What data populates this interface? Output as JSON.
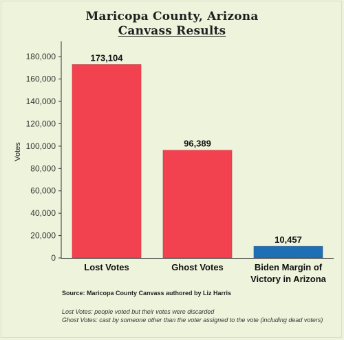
{
  "header": {
    "title_line1": "Maricopa County, Arizona",
    "title_line2": "Canvass Results"
  },
  "chart_data": {
    "type": "bar",
    "categories": [
      "Lost Votes",
      "Ghost Votes",
      "Biden Margin of Victory in Arizona"
    ],
    "category_lines": [
      [
        "Lost Votes"
      ],
      [
        "Ghost Votes"
      ],
      [
        "Biden Margin of",
        "Victory in Arizona"
      ]
    ],
    "values": [
      173104,
      96389,
      10457
    ],
    "value_labels": [
      "173,104",
      "96,389",
      "10,457"
    ],
    "bar_colors": [
      "#f2414f",
      "#f2414f",
      "#1f6fb4"
    ],
    "ylabel": "Votes",
    "xlabel": "",
    "ylim": [
      0,
      190000
    ],
    "yticks": [
      0,
      20000,
      40000,
      60000,
      80000,
      100000,
      120000,
      140000,
      160000,
      180000
    ],
    "ytick_labels": [
      "0",
      "20,000",
      "40,000",
      "60,000",
      "80,000",
      "100,000",
      "120,000",
      "140,000",
      "160,000",
      "180,000"
    ],
    "grid": false
  },
  "footer": {
    "source": "Source: Maricopa County Canvass authored by Liz Harris",
    "note1": "Lost Votes: people voted but their votes were discarded",
    "note2": "Ghost Votes: cast by someone other than the voter assigned to the vote (including dead voters)"
  }
}
